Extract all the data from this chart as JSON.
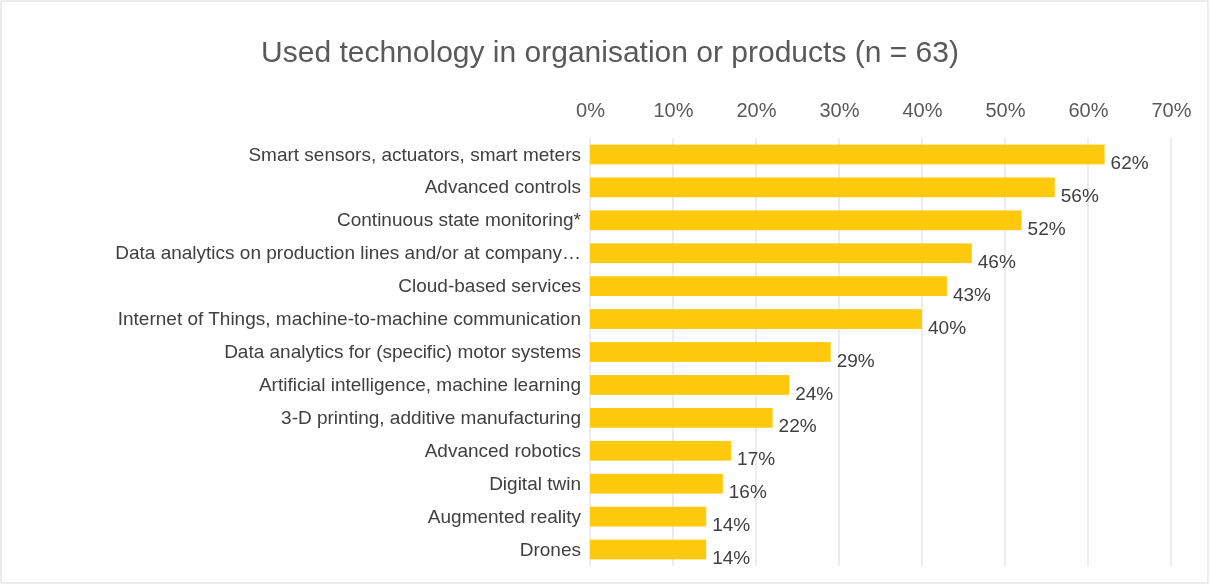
{
  "chart_data": {
    "type": "bar",
    "orientation": "horizontal",
    "title": "Used technology in organisation or products (n = 63)",
    "categories": [
      "Smart sensors, actuators, smart meters",
      "Advanced controls",
      "Continuous state monitoring*",
      "Data analytics on production lines and/or at company…",
      "Cloud-based services",
      "Internet of Things, machine-to-machine communication",
      "Data analytics for (specific) motor systems",
      "Artificial intelligence, machine learning",
      "3-D printing, additive manufacturing",
      "Advanced robotics",
      "Digital twin",
      "Augmented reality",
      "Drones"
    ],
    "values": [
      62,
      56,
      52,
      46,
      43,
      40,
      29,
      24,
      22,
      17,
      16,
      14,
      14
    ],
    "value_labels": [
      "62%",
      "56%",
      "52%",
      "46%",
      "43%",
      "40%",
      "29%",
      "24%",
      "22%",
      "17%",
      "16%",
      "14%",
      "14%"
    ],
    "color": "#ffc90e",
    "xlim": [
      0,
      70
    ],
    "xticks": [
      {
        "value": 0,
        "label": "0%"
      },
      {
        "value": 10,
        "label": "10%"
      },
      {
        "value": 20,
        "label": "20%"
      },
      {
        "value": 30,
        "label": "30%"
      },
      {
        "value": 40,
        "label": "40%"
      },
      {
        "value": 50,
        "label": "50%"
      },
      {
        "value": 60,
        "label": "60%"
      },
      {
        "value": 70,
        "label": "70%"
      }
    ],
    "grid": "x"
  }
}
